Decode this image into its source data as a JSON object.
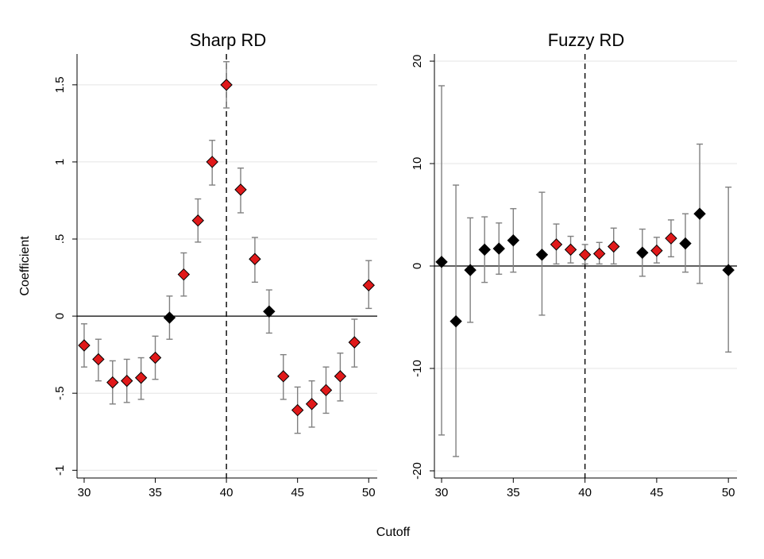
{
  "shared": {
    "ylabel": "Coefficient",
    "xlabel": "Cutoff",
    "colors": {
      "significant": "#e0191a",
      "not_significant": "#000000",
      "ci": "#808080",
      "gridline": "#e4e4e4"
    }
  },
  "chart_data": [
    {
      "type": "scatter",
      "title": "Sharp RD",
      "xlim": [
        29.5,
        50.6
      ],
      "ylim": [
        -1.05,
        1.7
      ],
      "xticks": [
        30,
        35,
        40,
        45,
        50
      ],
      "xtick_labels": [
        "30",
        "35",
        "40",
        "45",
        "50"
      ],
      "yticks": [
        -1,
        -0.5,
        0,
        0.5,
        1,
        1.5
      ],
      "ytick_labels": [
        "-1",
        "-.5",
        "0",
        ".5",
        "1",
        "1.5"
      ],
      "grid": true,
      "reference_x": 40,
      "reference_y": 0,
      "series": [
        {
          "x": [
            30,
            31,
            32,
            33,
            34,
            35,
            36,
            37,
            38,
            39,
            40,
            41,
            42,
            43,
            44,
            45,
            46,
            47,
            48,
            49,
            50
          ],
          "y": [
            -0.19,
            -0.28,
            -0.43,
            -0.42,
            -0.4,
            -0.27,
            -0.01,
            0.27,
            0.62,
            1.0,
            1.5,
            0.82,
            0.37,
            0.03,
            -0.39,
            -0.61,
            -0.57,
            -0.48,
            -0.39,
            -0.17,
            0.2
          ],
          "ci_low": [
            -0.33,
            -0.42,
            -0.57,
            -0.56,
            -0.54,
            -0.41,
            -0.15,
            0.13,
            0.48,
            0.85,
            1.35,
            0.67,
            0.22,
            -0.11,
            -0.54,
            -0.76,
            -0.72,
            -0.63,
            -0.55,
            -0.33,
            0.05
          ],
          "ci_high": [
            -0.05,
            -0.15,
            -0.29,
            -0.28,
            -0.27,
            -0.13,
            0.13,
            0.41,
            0.76,
            1.14,
            1.65,
            0.96,
            0.51,
            0.17,
            -0.25,
            -0.46,
            -0.42,
            -0.33,
            -0.24,
            -0.02,
            0.36
          ],
          "significant": [
            true,
            true,
            true,
            true,
            true,
            true,
            false,
            true,
            true,
            true,
            true,
            true,
            true,
            false,
            true,
            true,
            true,
            true,
            true,
            true,
            true
          ]
        }
      ]
    },
    {
      "type": "scatter",
      "title": "Fuzzy RD",
      "xlim": [
        29.5,
        50.6
      ],
      "ylim": [
        -20.7,
        20.7
      ],
      "xticks": [
        30,
        35,
        40,
        45,
        50
      ],
      "xtick_labels": [
        "30",
        "35",
        "40",
        "45",
        "50"
      ],
      "yticks": [
        -20,
        -10,
        0,
        10,
        20
      ],
      "ytick_labels": [
        "-20",
        "-10",
        "0",
        "10",
        "20"
      ],
      "grid": true,
      "reference_x": 40,
      "reference_y": 0,
      "series": [
        {
          "x": [
            30,
            31,
            32,
            33,
            34,
            35,
            37,
            38,
            39,
            40,
            41,
            42,
            44,
            45,
            46,
            47,
            48,
            50
          ],
          "y": [
            0.4,
            -5.4,
            -0.4,
            1.6,
            1.7,
            2.5,
            1.1,
            2.1,
            1.6,
            1.1,
            1.2,
            1.9,
            1.3,
            1.5,
            2.7,
            2.2,
            5.1,
            -0.4
          ],
          "ci_low": [
            -16.5,
            -18.6,
            -5.5,
            -1.6,
            -0.8,
            -0.6,
            -4.8,
            0.2,
            0.3,
            0.2,
            0.2,
            0.2,
            -1.0,
            0.3,
            0.9,
            -0.6,
            -1.7,
            -8.4
          ],
          "ci_high": [
            17.6,
            7.9,
            4.7,
            4.8,
            4.2,
            5.6,
            7.2,
            4.1,
            2.9,
            2.1,
            2.3,
            3.7,
            3.6,
            2.8,
            4.5,
            5.1,
            11.9,
            7.7
          ],
          "significant": [
            false,
            false,
            false,
            false,
            false,
            false,
            false,
            true,
            true,
            true,
            true,
            true,
            false,
            true,
            true,
            false,
            false,
            false
          ]
        }
      ]
    }
  ]
}
